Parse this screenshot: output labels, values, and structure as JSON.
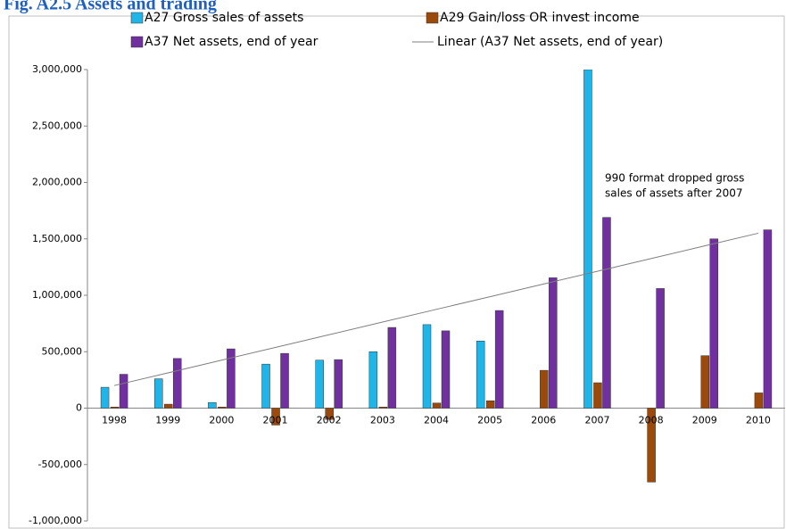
{
  "chart_data": {
    "type": "bar",
    "title": "Fig. A2.5 Assets and trading",
    "categories": [
      "1998",
      "1999",
      "2000",
      "2001",
      "2002",
      "2003",
      "2004",
      "2005",
      "2006",
      "2007",
      "2008",
      "2009",
      "2010"
    ],
    "series": [
      {
        "name": "A27 Gross sales of assets",
        "color": "#1fb5e8",
        "values": [
          185000,
          260000,
          50000,
          390000,
          425000,
          500000,
          740000,
          595000,
          null,
          3000000,
          null,
          null,
          null
        ]
      },
      {
        "name": "A29 Gain/loss OR invest income",
        "color": "#9c4a0c",
        "values": [
          10000,
          35000,
          10000,
          -150000,
          -100000,
          10000,
          45000,
          65000,
          335000,
          225000,
          -655000,
          465000,
          135000
        ]
      },
      {
        "name": "A37 Net assets, end of year",
        "color": "#7030a0",
        "values": [
          300000,
          440000,
          525000,
          485000,
          430000,
          715000,
          685000,
          865000,
          1155000,
          1690000,
          1060000,
          1500000,
          1580000
        ]
      }
    ],
    "trendline": {
      "name": "Linear (A37 Net assets, end of year)",
      "color": "#7f7f7f",
      "values": [
        200000,
        312500,
        425000,
        537500,
        650000,
        762500,
        875000,
        987500,
        1100000,
        1212500,
        1325000,
        1437500,
        1550000
      ]
    },
    "annotation": [
      "990 format dropped gross",
      "sales of assets after 2007"
    ],
    "ylim": [
      -1000000,
      3000000
    ],
    "yticks": [
      {
        "value": -1000000,
        "label": "-1,000,000"
      },
      {
        "value": -500000,
        "label": "-500,000"
      },
      0,
      {
        "value": 500000,
        "label": "500,000"
      },
      {
        "value": 1000000,
        "label": "1,000,000"
      },
      {
        "value": 1500000,
        "label": "1,500,000"
      },
      {
        "value": 2000000,
        "label": "2,000,000"
      },
      {
        "value": 2500000,
        "label": "2,500,000"
      },
      {
        "value": 3000000,
        "label": "3,000,000"
      }
    ],
    "grid": false
  }
}
